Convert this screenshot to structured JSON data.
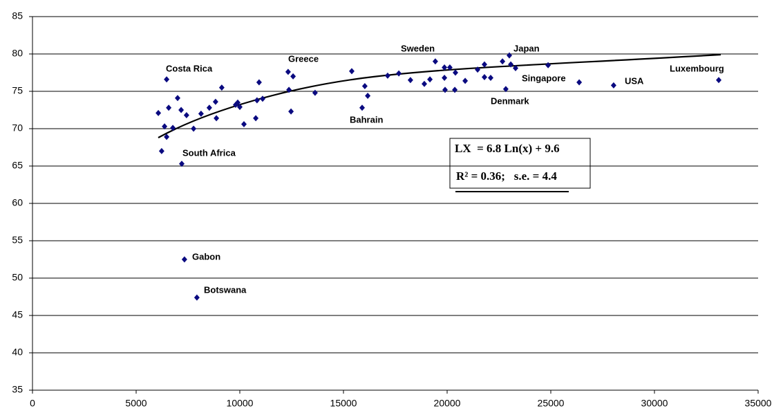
{
  "chart_data": {
    "type": "scatter",
    "x": [
      6070,
      6230,
      6370,
      6470,
      6470,
      6570,
      6770,
      7000,
      7170,
      7200,
      7430,
      7330,
      7770,
      7930,
      8130,
      8530,
      8830,
      8870,
      9130,
      9800,
      9900,
      10000,
      10200,
      10770,
      10830,
      10930,
      11100,
      12330,
      12370,
      12570,
      12470,
      13630,
      15400,
      15900,
      16030,
      16170,
      17130,
      17670,
      18230,
      18900,
      19170,
      19430,
      19870,
      20130,
      19870,
      19900,
      20370,
      20400,
      20870,
      21470,
      21800,
      21800,
      22100,
      22670,
      22830,
      23000,
      23070,
      23300,
      24870,
      26370,
      28030,
      33100
    ],
    "values": [
      72.1,
      67.0,
      70.3,
      68.9,
      76.6,
      72.8,
      70.1,
      74.1,
      72.5,
      65.3,
      71.8,
      52.5,
      70.0,
      47.4,
      72.0,
      72.8,
      73.6,
      71.4,
      75.5,
      73.2,
      73.5,
      72.9,
      70.6,
      71.4,
      73.8,
      76.2,
      74.0,
      77.6,
      75.2,
      77.0,
      72.3,
      74.8,
      77.7,
      72.8,
      75.7,
      74.4,
      77.1,
      77.4,
      76.5,
      76.0,
      76.6,
      79.0,
      78.2,
      78.2,
      76.8,
      75.2,
      75.2,
      77.5,
      76.4,
      77.9,
      78.6,
      76.9,
      76.8,
      79.0,
      75.3,
      79.8,
      78.6,
      78.1,
      78.5,
      76.2,
      75.8,
      76.5
    ],
    "color": "#0a0a80",
    "xlim": [
      0,
      35000
    ],
    "xticks": [
      0,
      5000,
      10000,
      15000,
      20000,
      25000,
      30000,
      35000
    ],
    "ylim": [
      35,
      85
    ],
    "yticks": [
      35,
      40,
      45,
      50,
      55,
      60,
      65,
      70,
      75,
      80,
      85
    ],
    "grid": true,
    "annotations": [
      "Costa Rica",
      "Greece",
      "Sweden",
      "Japan",
      "Singapore",
      "USA",
      "Luxembourg",
      "Denmark",
      "Bahrain",
      "South Africa",
      "Gabon",
      "Botswana"
    ],
    "equation": [
      "LX  = 6.8 Ln(x) + 9.6",
      "R² = 0.36;   s.e. = 4.4"
    ]
  }
}
